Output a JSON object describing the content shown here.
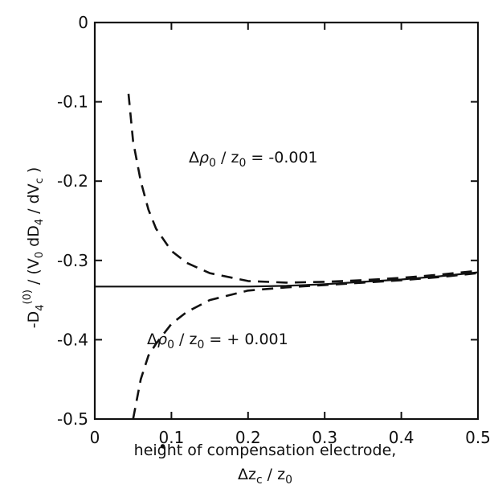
{
  "chart_data": {
    "type": "line",
    "xlabel_line1": "height of compensation electrode,",
    "xlabel_line2": "Δz_c / z_0",
    "ylabel": "-D_4^(0) / (V_0 dD_4 / dV_c)",
    "xlim": [
      0,
      0.5
    ],
    "ylim": [
      -0.5,
      0
    ],
    "x_ticks": [
      0,
      0.1,
      0.2,
      0.3,
      0.4,
      0.5
    ],
    "x_tick_labels": [
      "0",
      "0.1",
      "0.2",
      "0.3",
      "0.4",
      "0.5"
    ],
    "y_ticks": [
      0,
      -0.1,
      -0.2,
      -0.3,
      -0.4,
      -0.5
    ],
    "y_tick_labels": [
      "0",
      "-0.1",
      "-0.2",
      "-0.3",
      "-0.4",
      "-0.5"
    ],
    "series": [
      {
        "style": "solid",
        "x": [
          0,
          0.05,
          0.1,
          0.15,
          0.2,
          0.25,
          0.3,
          0.35,
          0.4,
          0.45,
          0.5
        ],
        "y": [
          -0.333,
          -0.333,
          -0.333,
          -0.333,
          -0.333,
          -0.332,
          -0.33,
          -0.327,
          -0.324,
          -0.32,
          -0.315
        ]
      },
      {
        "label": "Δρ_0 / z_0 = -0.001",
        "style": "dashed",
        "x": [
          0.044,
          0.05,
          0.06,
          0.07,
          0.08,
          0.1,
          0.12,
          0.15,
          0.2,
          0.25,
          0.3,
          0.35,
          0.4,
          0.45,
          0.5
        ],
        "y": [
          -0.09,
          -0.15,
          -0.2,
          -0.236,
          -0.26,
          -0.288,
          -0.303,
          -0.316,
          -0.326,
          -0.328,
          -0.327,
          -0.325,
          -0.322,
          -0.318,
          -0.313
        ]
      },
      {
        "label": "Δρ_0 / z_0 = + 0.001",
        "style": "dashed",
        "x": [
          0.05,
          0.06,
          0.07,
          0.08,
          0.1,
          0.12,
          0.15,
          0.2,
          0.25,
          0.3,
          0.35,
          0.4,
          0.45,
          0.5
        ],
        "y": [
          -0.5,
          -0.45,
          -0.42,
          -0.405,
          -0.38,
          -0.365,
          -0.35,
          -0.338,
          -0.334,
          -0.331,
          -0.328,
          -0.325,
          -0.321,
          -0.316
        ]
      }
    ]
  }
}
